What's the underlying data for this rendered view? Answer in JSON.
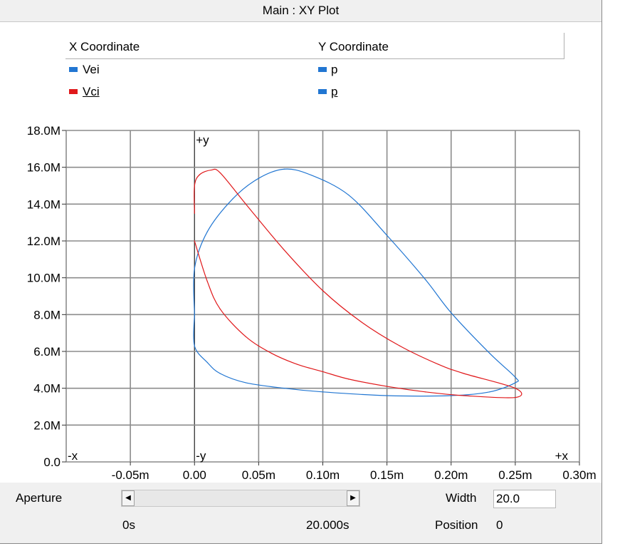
{
  "window": {
    "title": "Main : XY Plot"
  },
  "legend": {
    "x_header": "X Coordinate",
    "y_header": "Y Coordinate",
    "rows": [
      {
        "x_name": "Vei",
        "y_name": "p",
        "x_color": "#2176d2",
        "y_color": "#2176d2",
        "underlined": false
      },
      {
        "x_name": "Vci",
        "y_name": "p",
        "x_color": "#e0191b",
        "y_color": "#2176d2",
        "underlined": true
      }
    ]
  },
  "chart_data": {
    "type": "scatter",
    "xlim": [
      -0.1,
      0.3
    ],
    "ylim": [
      0,
      18
    ],
    "x_ticks": [
      -0.05,
      0.0,
      0.05,
      0.1,
      0.15,
      0.2,
      0.25,
      0.3
    ],
    "x_tick_labels": [
      "-0.05m",
      "0.00",
      "0.05m",
      "0.10m",
      "0.15m",
      "0.20m",
      "0.25m",
      "0.30m"
    ],
    "y_ticks": [
      0,
      2,
      4,
      6,
      8,
      10,
      12,
      14,
      16,
      18
    ],
    "y_tick_labels": [
      "0.0",
      "2.0M",
      "4.0M",
      "6.0M",
      "8.0M",
      "10.0M",
      "12.0M",
      "14.0M",
      "16.0M",
      "18.0M"
    ],
    "grid": true,
    "axis_markers": {
      "plus_y": "+y",
      "minus_y": "-y",
      "minus_x": "-x",
      "plus_x": "+x"
    },
    "series": [
      {
        "name": "Vei",
        "color": "#2176d2",
        "x": [
          0.0,
          0.0,
          0.01,
          0.03,
          0.05,
          0.07,
          0.09,
          0.12,
          0.15,
          0.18,
          0.2,
          0.23,
          0.25,
          0.25,
          0.23,
          0.2,
          0.15,
          0.1,
          0.07,
          0.04,
          0.02,
          0.01,
          0.0,
          0.0
        ],
        "y": [
          8.0,
          10.5,
          12.5,
          14.3,
          15.4,
          15.9,
          15.6,
          14.5,
          12.3,
          9.9,
          8.1,
          5.9,
          4.6,
          4.3,
          3.8,
          3.6,
          3.6,
          3.8,
          4.0,
          4.3,
          4.8,
          5.4,
          6.3,
          8.0
        ]
      },
      {
        "name": "Vci",
        "color": "#e0191b",
        "x": [
          0.0,
          0.0,
          0.004,
          0.013,
          0.02,
          0.04,
          0.07,
          0.1,
          0.13,
          0.16,
          0.19,
          0.21,
          0.25,
          0.25,
          0.21,
          0.18,
          0.15,
          0.12,
          0.1,
          0.08,
          0.06,
          0.04,
          0.02,
          0.01,
          0.0
        ],
        "y": [
          13.5,
          15.0,
          15.6,
          15.85,
          15.7,
          14.0,
          11.5,
          9.3,
          7.6,
          6.3,
          5.3,
          4.8,
          4.0,
          3.5,
          3.6,
          3.8,
          4.1,
          4.5,
          4.9,
          5.3,
          5.9,
          6.8,
          8.3,
          9.8,
          12.0
        ]
      }
    ]
  },
  "controls": {
    "aperture_label": "Aperture",
    "width_label": "Width",
    "width_value": "20.0",
    "position_label": "Position",
    "position_value": "0",
    "start_time": "0s",
    "end_time": "20.000s",
    "scroll_left": "◀",
    "scroll_right": "▶"
  }
}
